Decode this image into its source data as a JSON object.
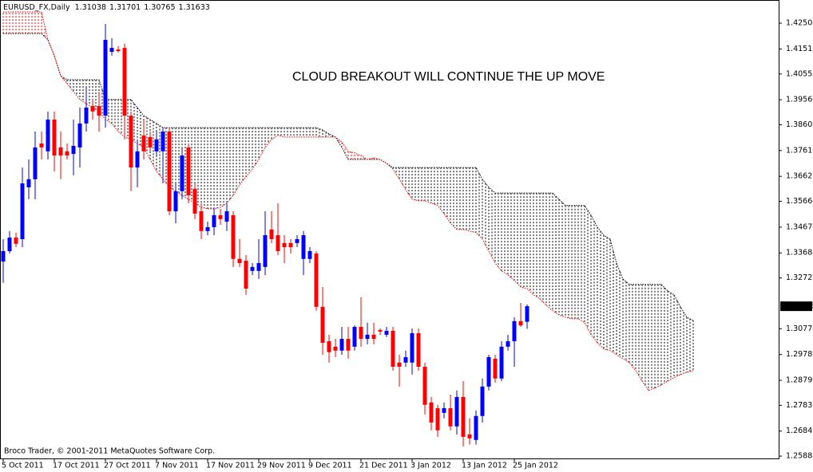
{
  "chart_data": {
    "type": "candlestick",
    "title": "EURUSD_FX,Daily",
    "annotation": "CLOUD BREAKOUT WILL CONTINUE THE UP MOVE",
    "footer": "Broco Trader, © 2001-2011 MetaQuotes Software Corp.",
    "up_color": "#0000ff",
    "down_color": "#ff0000",
    "annotation_color": "#ff0000",
    "categories": [
      "5 Oct 2011",
      null,
      null,
      null,
      null,
      null,
      null,
      null,
      "17 Oct 2011",
      null,
      null,
      null,
      null,
      null,
      null,
      null,
      "27 Oct 2011",
      null,
      null,
      null,
      null,
      null,
      null,
      null,
      "7 Nov 2011",
      null,
      null,
      null,
      null,
      null,
      null,
      null,
      "17 Nov 2011",
      null,
      null,
      null,
      null,
      null,
      null,
      null,
      "29 Nov 2011",
      null,
      null,
      null,
      null,
      null,
      null,
      null,
      "9 Dec 2011",
      null,
      null,
      null,
      null,
      null,
      null,
      null,
      "21 Dec 2011",
      null,
      null,
      null,
      null,
      null,
      null,
      null,
      "3 Jan 2012",
      null,
      null,
      null,
      null,
      null,
      null,
      null,
      "13 Jan 2012",
      null,
      null,
      null,
      null,
      null,
      null,
      null,
      "25 Jan 2012",
      null,
      null,
      null,
      null,
      null,
      null,
      null,
      null,
      null,
      null,
      null,
      null,
      null,
      null,
      null,
      null,
      null,
      null,
      null,
      null,
      null,
      null,
      null,
      null,
      null,
      null,
      null,
      null
    ],
    "candles": {
      "open": [
        1.3335,
        1.3375,
        1.3427,
        1.3421,
        1.362,
        1.3651,
        1.3788,
        1.3758,
        1.388,
        1.3773,
        1.3758,
        1.3748,
        1.3773,
        1.3865,
        1.3932,
        1.3932,
        1.3895,
        1.414,
        1.4149,
        1.4155,
        1.3895,
        1.3696,
        1.3819,
        1.3813,
        1.3758,
        1.3758,
        1.3834,
        1.3528,
        1.3605,
        1.3773,
        1.3614,
        1.3528,
        1.3452,
        1.3467,
        1.3513,
        1.3488,
        1.3513,
        1.3345,
        1.3338,
        1.3299,
        1.3299,
        1.3314,
        1.3458,
        1.3436,
        1.3406,
        1.3406,
        1.3406,
        1.3345,
        1.3345,
        1.3366,
        1.3161,
        1.3029,
        1.3008,
        1.2993,
        1.3038,
        1.3008,
        1.3084,
        1.3038,
        1.3054,
        1.3072,
        1.3054,
        1.3069,
        1.2947,
        1.2947,
        1.2947,
        1.306,
        1.2931,
        1.2794,
        1.2772,
        1.2754,
        1.2772,
        1.2702,
        1.2815,
        1.2671,
        1.265,
        1.2742,
        1.2855,
        1.2962,
        1.2886,
        1.3008,
        1.3029,
        1.3106,
        1.31038,
        null,
        null,
        null,
        null,
        null,
        null,
        null,
        null,
        null,
        null,
        null,
        null,
        null,
        null,
        null,
        null,
        null,
        null,
        null,
        null,
        null,
        null,
        null,
        null,
        null,
        null
      ],
      "high": [
        1.3421,
        1.3452,
        1.3446,
        1.3696,
        1.3727,
        1.3834,
        1.3834,
        1.3911,
        1.3911,
        1.3834,
        1.3788,
        1.388,
        1.3926,
        1.4002,
        1.3957,
        1.3987,
        1.4247,
        1.4192,
        1.4162,
        1.4171,
        1.3911,
        1.3804,
        1.388,
        1.3834,
        1.3834,
        1.3849,
        1.3849,
        1.3635,
        1.3773,
        1.3788,
        1.3635,
        1.3559,
        1.3488,
        1.3543,
        1.3537,
        1.3559,
        1.3528,
        1.3421,
        1.336,
        1.3329,
        1.3421,
        1.3528,
        1.3528,
        1.3559,
        1.3436,
        1.3421,
        1.3436,
        1.3452,
        1.339,
        1.3375,
        1.3237,
        1.3054,
        1.3038,
        1.3084,
        1.3084,
        1.309,
        1.3198,
        1.31,
        1.31,
        1.3078,
        1.3084,
        1.3084,
        1.2977,
        1.2993,
        1.3078,
        1.3078,
        1.2947,
        1.2815,
        1.2785,
        1.2794,
        1.2824,
        1.284,
        1.2876,
        1.2733,
        1.2763,
        1.2886,
        1.2977,
        1.2977,
        1.3029,
        1.3054,
        1.3121,
        1.3176,
        1.31701,
        null,
        null,
        null,
        null,
        null,
        null,
        null,
        null,
        null,
        null,
        null,
        null,
        null,
        null,
        null,
        null,
        null,
        null,
        null,
        null,
        null,
        null,
        null,
        null,
        null,
        null
      ],
      "low": [
        1.3253,
        1.3366,
        1.339,
        1.339,
        1.3574,
        1.3574,
        1.3727,
        1.3727,
        1.3681,
        1.3651,
        1.3727,
        1.3666,
        1.3696,
        1.3834,
        1.388,
        1.3834,
        1.3849,
        1.4125,
        1.4137,
        1.3804,
        1.3605,
        1.362,
        1.3727,
        1.3758,
        1.3742,
        1.3635,
        1.3513,
        1.3482,
        1.3574,
        1.3559,
        1.3498,
        1.3421,
        1.3436,
        1.3436,
        1.3476,
        1.3452,
        1.3314,
        1.3314,
        1.3207,
        1.3283,
        1.3268,
        1.3283,
        1.3406,
        1.336,
        1.3329,
        1.3366,
        1.339,
        1.3283,
        1.3329,
        1.3146,
        1.2977,
        1.2947,
        1.2968,
        1.2977,
        1.2962,
        1.2993,
        1.3008,
        1.3017,
        1.3017,
        1.3054,
        1.3045,
        1.2916,
        1.2855,
        1.2931,
        1.2901,
        1.2916,
        1.2748,
        1.2687,
        1.2662,
        1.2733,
        1.2687,
        1.2671,
        1.2625,
        1.2632,
        1.2632,
        1.2717,
        1.284,
        1.287,
        1.2876,
        1.2993,
        1.2931,
        1.3084,
        1.30765,
        null,
        null,
        null,
        null,
        null,
        null,
        null,
        null,
        null,
        null,
        null,
        null,
        null,
        null,
        null,
        null,
        null,
        null,
        null,
        null,
        null,
        null,
        null,
        null,
        null,
        null
      ],
      "close": [
        1.3375,
        1.3427,
        1.3403,
        1.3635,
        1.3651,
        1.3773,
        1.3773,
        1.388,
        1.3742,
        1.3742,
        1.3742,
        1.3779,
        1.3865,
        1.3926,
        1.3911,
        1.3895,
        1.4186,
        1.4155,
        1.4143,
        1.3895,
        1.3696,
        1.3758,
        1.3758,
        1.3773,
        1.3804,
        1.3834,
        1.3528,
        1.3605,
        1.3742,
        1.3589,
        1.3519,
        1.3452,
        1.3467,
        1.3513,
        1.3498,
        1.3528,
        1.3345,
        1.3329,
        1.3231,
        1.3314,
        1.3329,
        1.3436,
        1.3421,
        1.3375,
        1.339,
        1.339,
        1.3421,
        1.3436,
        1.3375,
        1.3161,
        1.3023,
        1.2987,
        1.2993,
        1.3038,
        1.2993,
        1.3084,
        1.3038,
        1.3054,
        1.3038,
        1.3066,
        1.3069,
        1.2931,
        1.2931,
        1.2968,
        1.306,
        1.2931,
        1.2785,
        1.2717,
        1.2687,
        1.2772,
        1.2702,
        1.2815,
        1.2662,
        1.2656,
        1.2742,
        1.2855,
        1.2968,
        1.2886,
        1.3008,
        1.3029,
        1.3106,
        1.309,
        1.31633,
        null,
        null,
        null,
        null,
        null,
        null,
        null,
        null,
        null,
        null,
        null,
        null,
        null,
        null,
        null,
        null,
        null,
        null,
        null,
        null,
        null,
        null,
        null,
        null,
        null,
        null
      ]
    },
    "cloud": [
      {
        "color": "#000000",
        "values": [
          1.421,
          1.421,
          1.421,
          1.421,
          1.421,
          1.421,
          1.421,
          1.4186,
          1.4125,
          1.4048,
          1.4033,
          1.4033,
          1.4033,
          1.4033,
          1.4033,
          1.4033,
          1.3957,
          1.3957,
          1.3957,
          1.3957,
          1.3957,
          1.3926,
          1.3895,
          1.388,
          1.3865,
          1.3849,
          1.3849,
          1.3849,
          1.3849,
          1.3849,
          1.3849,
          1.3849,
          1.3849,
          1.3849,
          1.3849,
          1.3849,
          1.3849,
          1.3849,
          1.3849,
          1.3849,
          1.3849,
          1.3849,
          1.3849,
          1.3849,
          1.3849,
          1.3849,
          1.3849,
          1.3849,
          1.3849,
          1.3849,
          1.384,
          1.3825,
          1.3813,
          1.3773,
          1.3727,
          1.3727,
          1.3727,
          1.3727,
          1.3727,
          1.3727,
          1.3712,
          1.3696,
          1.3696,
          1.3696,
          1.3696,
          1.3696,
          1.3696,
          1.3696,
          1.3696,
          1.3696,
          1.3696,
          1.3696,
          1.3696,
          1.3696,
          1.3696,
          1.3651,
          1.362,
          1.3598,
          1.3598,
          1.3598,
          1.3598,
          1.3598,
          1.3598,
          1.3598,
          1.3598,
          1.3598,
          1.3598,
          1.3574,
          1.355,
          1.355,
          1.355,
          1.355,
          1.3513,
          1.3467,
          1.3436,
          1.3421,
          1.3329,
          1.3268,
          1.3247,
          1.3247,
          1.3247,
          1.3247,
          1.3247,
          1.3247,
          1.3222,
          1.3207,
          1.3161,
          1.3121,
          1.3109
        ]
      },
      {
        "color": "#ff0000",
        "values": [
          1.4293,
          1.4293,
          1.4293,
          1.4293,
          1.4293,
          1.4293,
          1.4293,
          1.4186,
          1.4125,
          1.4048,
          1.4018,
          1.3987,
          1.3957,
          1.3941,
          1.3926,
          1.3911,
          1.388,
          1.3865,
          1.3834,
          1.3813,
          1.3804,
          1.3788,
          1.3773,
          1.3727,
          1.3681,
          1.3651,
          1.362,
          1.3605,
          1.3589,
          1.3574,
          1.3559,
          1.3543,
          1.3537,
          1.3537,
          1.3543,
          1.3559,
          1.3589,
          1.3629,
          1.366,
          1.369,
          1.3727,
          1.3773,
          1.3804,
          1.3819,
          1.3813,
          1.3813,
          1.3813,
          1.3813,
          1.3813,
          1.3813,
          1.3813,
          1.3813,
          1.3813,
          1.3794,
          1.3758,
          1.3752,
          1.3742,
          1.3727,
          1.3733,
          1.3727,
          1.3712,
          1.369,
          1.3651,
          1.3611,
          1.3574,
          1.3568,
          1.3568,
          1.3559,
          1.355,
          1.3519,
          1.3482,
          1.3458,
          1.3458,
          1.3452,
          1.3446,
          1.3421,
          1.3375,
          1.3329,
          1.3299,
          1.3283,
          1.3262,
          1.3237,
          1.3231,
          1.3207,
          1.3192,
          1.3167,
          1.3146,
          1.313,
          1.3121,
          1.3115,
          1.3115,
          1.31,
          1.3054,
          1.3023,
          1.2999,
          1.2993,
          1.2977,
          1.2962,
          1.2947,
          1.2916,
          1.2876,
          1.284,
          1.2849,
          1.2861,
          1.2876,
          1.2889,
          1.2901,
          1.291,
          1.2916
        ]
      }
    ],
    "ylim": [
      1.2579,
      1.4339
    ],
    "yticks": [
      {
        "value": 1.425,
        "label": "1.42500"
      },
      {
        "value": 1.4151,
        "label": "1.41510"
      },
      {
        "value": 1.4055,
        "label": "1.40550"
      },
      {
        "value": 1.3956,
        "label": "1.39560"
      },
      {
        "value": 1.386,
        "label": "1.38600"
      },
      {
        "value": 1.3761,
        "label": "1.37610"
      },
      {
        "value": 1.3662,
        "label": "1.36620"
      },
      {
        "value": 1.3566,
        "label": "1.35660"
      },
      {
        "value": 1.3467,
        "label": "1.34670"
      },
      {
        "value": 1.3368,
        "label": "1.33680"
      },
      {
        "value": 1.3272,
        "label": "1.32720"
      },
      {
        "value": 1.3077,
        "label": "1.30770"
      },
      {
        "value": 1.2978,
        "label": "1.29780"
      },
      {
        "value": 1.2879,
        "label": "1.28790"
      },
      {
        "value": 1.2783,
        "label": "1.27830"
      },
      {
        "value": 1.2684,
        "label": "1.26840"
      },
      {
        "value": 1.2588,
        "label": "1.25880"
      }
    ]
  }
}
